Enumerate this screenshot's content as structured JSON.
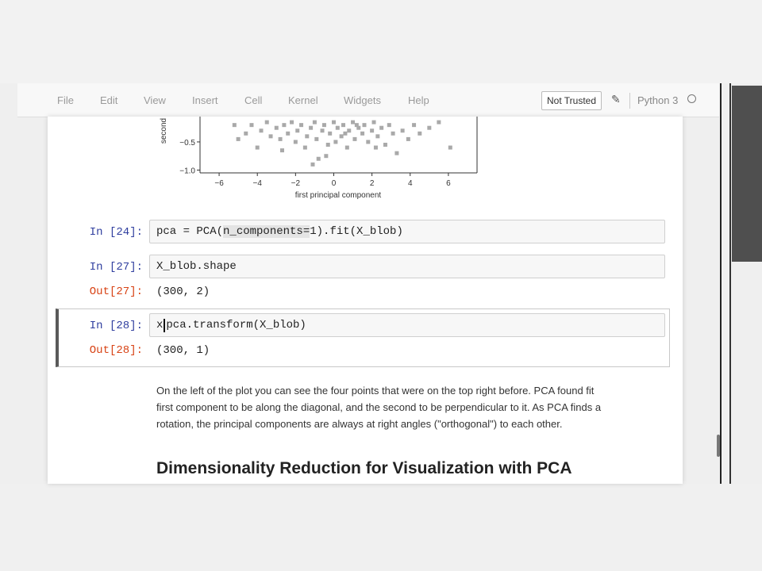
{
  "menubar": {
    "items": [
      "File",
      "Edit",
      "View",
      "Insert",
      "Cell",
      "Kernel",
      "Widgets",
      "Help"
    ],
    "trust_label": "Not Trusted",
    "kernel_name": "Python 3"
  },
  "chart_data": {
    "type": "scatter",
    "title": "",
    "xlabel": "first principal component",
    "ylabel": "second",
    "xticks": [
      "−6",
      "−4",
      "−2",
      "0",
      "2",
      "4",
      "6"
    ],
    "yticks": [
      "−0.5",
      "−1.0"
    ],
    "xlim": [
      -7,
      7.5
    ],
    "ylim": [
      -1.05,
      -0.05
    ],
    "points": [
      [
        -5.2,
        -0.2
      ],
      [
        -5.0,
        -0.45
      ],
      [
        -4.6,
        -0.35
      ],
      [
        -4.3,
        -0.2
      ],
      [
        -4.0,
        -0.6
      ],
      [
        -3.8,
        -0.3
      ],
      [
        -3.5,
        -0.15
      ],
      [
        -3.3,
        -0.4
      ],
      [
        -3.0,
        -0.25
      ],
      [
        -2.8,
        -0.45
      ],
      [
        -2.6,
        -0.2
      ],
      [
        -2.4,
        -0.35
      ],
      [
        -2.2,
        -0.15
      ],
      [
        -2.0,
        -0.5
      ],
      [
        -1.9,
        -0.3
      ],
      [
        -1.7,
        -0.2
      ],
      [
        -1.5,
        -0.6
      ],
      [
        -1.4,
        -0.4
      ],
      [
        -1.2,
        -0.25
      ],
      [
        -1.0,
        -0.15
      ],
      [
        -0.9,
        -0.45
      ],
      [
        -0.8,
        -0.8
      ],
      [
        -0.6,
        -0.3
      ],
      [
        -0.5,
        -0.2
      ],
      [
        -0.3,
        -0.55
      ],
      [
        -0.2,
        -0.35
      ],
      [
        0.0,
        -0.15
      ],
      [
        0.1,
        -0.5
      ],
      [
        0.2,
        -0.25
      ],
      [
        0.4,
        -0.4
      ],
      [
        0.5,
        -0.2
      ],
      [
        0.7,
        -0.6
      ],
      [
        0.8,
        -0.3
      ],
      [
        1.0,
        -0.15
      ],
      [
        1.1,
        -0.45
      ],
      [
        1.3,
        -0.25
      ],
      [
        1.5,
        -0.35
      ],
      [
        1.6,
        -0.2
      ],
      [
        1.8,
        -0.5
      ],
      [
        2.0,
        -0.3
      ],
      [
        2.1,
        -0.15
      ],
      [
        2.3,
        -0.4
      ],
      [
        2.5,
        -0.25
      ],
      [
        2.7,
        -0.55
      ],
      [
        2.9,
        -0.2
      ],
      [
        3.1,
        -0.35
      ],
      [
        3.3,
        -0.7
      ],
      [
        3.6,
        -0.3
      ],
      [
        3.9,
        -0.45
      ],
      [
        4.2,
        -0.2
      ],
      [
        4.5,
        -0.35
      ],
      [
        5.0,
        -0.25
      ],
      [
        5.5,
        -0.15
      ],
      [
        6.1,
        -0.6
      ],
      [
        -1.1,
        -0.9
      ],
      [
        -0.4,
        -0.75
      ],
      [
        2.2,
        -0.6
      ],
      [
        -2.7,
        -0.65
      ],
      [
        1.2,
        -0.2
      ],
      [
        0.6,
        -0.35
      ]
    ]
  },
  "cells": [
    {
      "prompt": "In [24]:",
      "code": "pca = PCA(n_components=1).fit(X_blob)",
      "code_pre": "pca = PCA(",
      "code_hl": "n_components=",
      "code_post": "1).fit(X_blob)"
    },
    {
      "prompt": "In [27]:",
      "code": "X_blob.shape",
      "out_prompt": "Out[27]:",
      "output": "(300, 2)"
    },
    {
      "prompt": "In [28]:",
      "code_pre": "x",
      "code_post": "pca.transform(X_blob)",
      "out_prompt": "Out[28]:",
      "output": "(300, 1)"
    }
  ],
  "markdown": {
    "paragraph_line1": "On the left of the plot you can see the four points that were on the top right before. PCA found fit",
    "paragraph_line2": "first component to be along the diagonal, and the second to be perpendicular to it. As PCA finds a",
    "paragraph_line3": "rotation, the principal components are always at right angles (\"orthogonal\") to each other.",
    "heading": "Dimensionality Reduction for Visualization with PCA"
  }
}
